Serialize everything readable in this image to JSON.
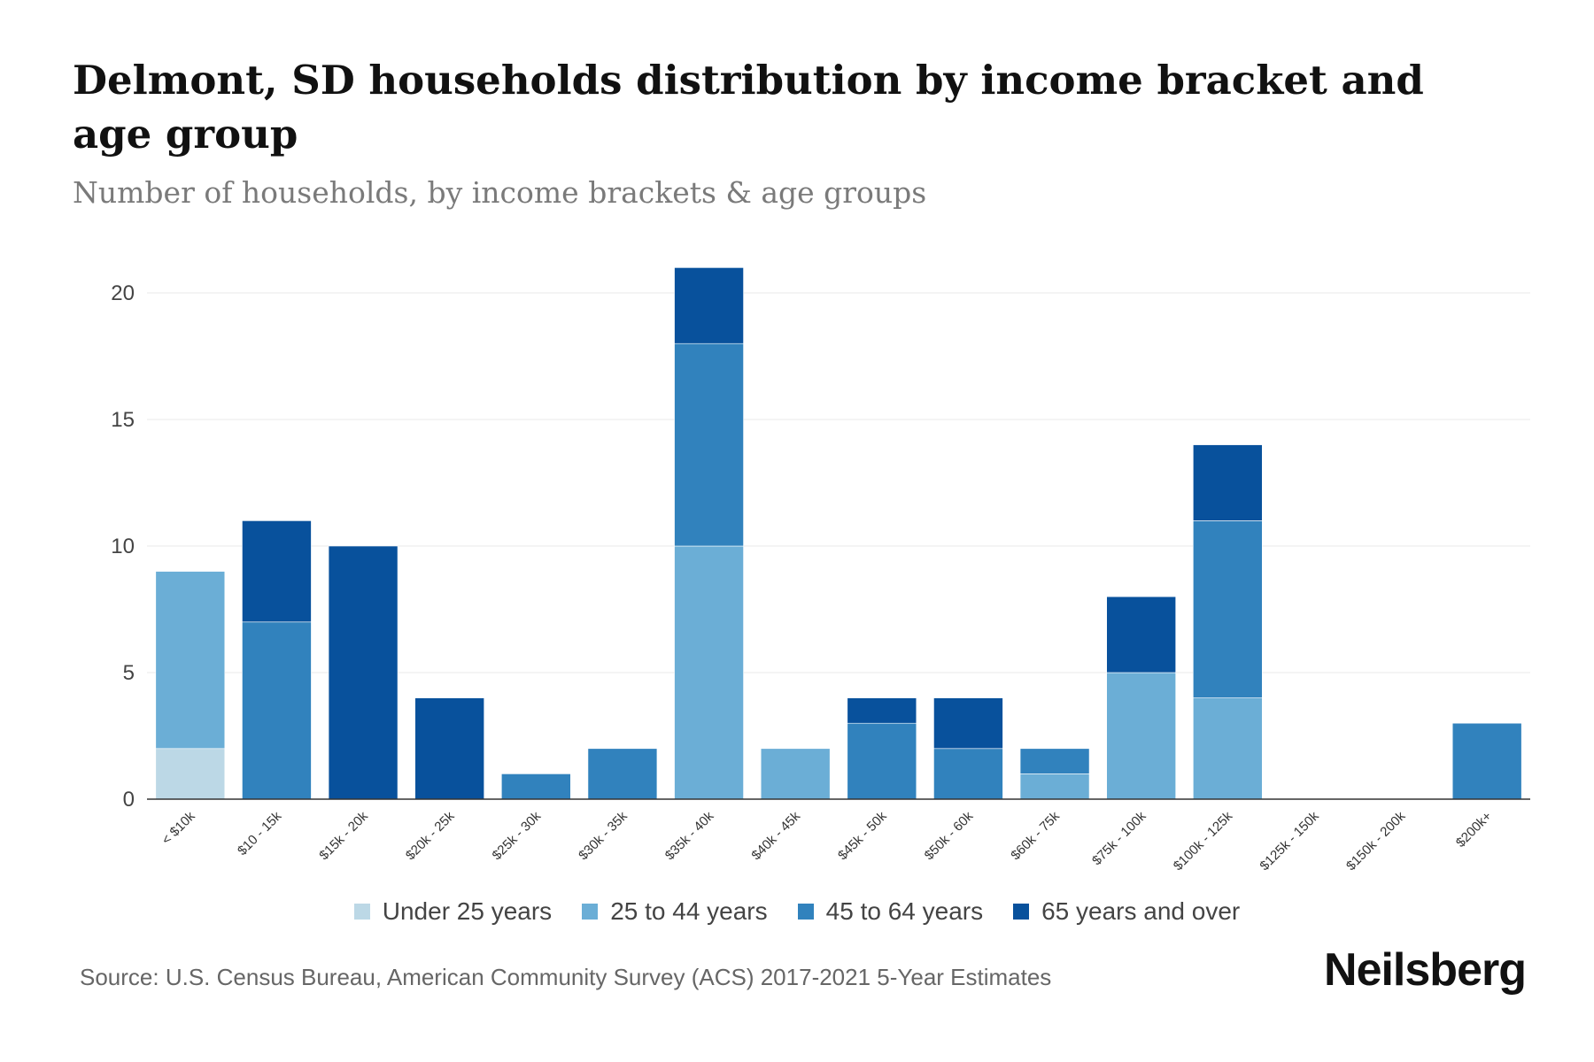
{
  "header": {
    "title": "Delmont, SD households distribution by income bracket and age group",
    "subtitle": "Number of households, by income brackets & age groups"
  },
  "colors": {
    "Under 25 years": "#bcd8e6",
    "25 to 44 years": "#6baed6",
    "45 to 64 years": "#3182bd",
    "65 years and over": "#08519c"
  },
  "chart_data": {
    "type": "bar",
    "stacked": true,
    "title": "Delmont, SD households distribution by income bracket and age group",
    "subtitle": "Number of households, by income brackets & age groups",
    "xlabel": "",
    "ylabel": "",
    "ylim": [
      0,
      21
    ],
    "yticks": [
      0,
      5,
      10,
      15,
      20
    ],
    "grid": true,
    "legend_position": "bottom-center",
    "categories": [
      "< $10k",
      "$10 - 15k",
      "$15k - 20k",
      "$20k - 25k",
      "$25k - 30k",
      "$30k - 35k",
      "$35k - 40k",
      "$40k - 45k",
      "$45k - 50k",
      "$50k - 60k",
      "$60k - 75k",
      "$75k - 100k",
      "$100k - 125k",
      "$125k - 150k",
      "$150k - 200k",
      "$200k+"
    ],
    "series": [
      {
        "name": "Under 25 years",
        "values": [
          2,
          0,
          0,
          0,
          0,
          0,
          0,
          0,
          0,
          0,
          0,
          0,
          0,
          0,
          0,
          0
        ]
      },
      {
        "name": "25 to 44 years",
        "values": [
          7,
          0,
          0,
          0,
          0,
          0,
          10,
          2,
          0,
          0,
          1,
          5,
          4,
          0,
          0,
          0
        ]
      },
      {
        "name": "45 to 64 years",
        "values": [
          0,
          7,
          0,
          0,
          1,
          2,
          8,
          0,
          3,
          2,
          1,
          0,
          7,
          0,
          0,
          3
        ]
      },
      {
        "name": "65 years and over",
        "values": [
          0,
          4,
          10,
          4,
          0,
          0,
          3,
          0,
          1,
          2,
          0,
          3,
          3,
          0,
          0,
          0
        ]
      }
    ]
  },
  "footer": {
    "source": "Source: U.S. Census Bureau, American Community Survey (ACS) 2017-2021 5-Year Estimates",
    "brand": "Neilsberg"
  }
}
